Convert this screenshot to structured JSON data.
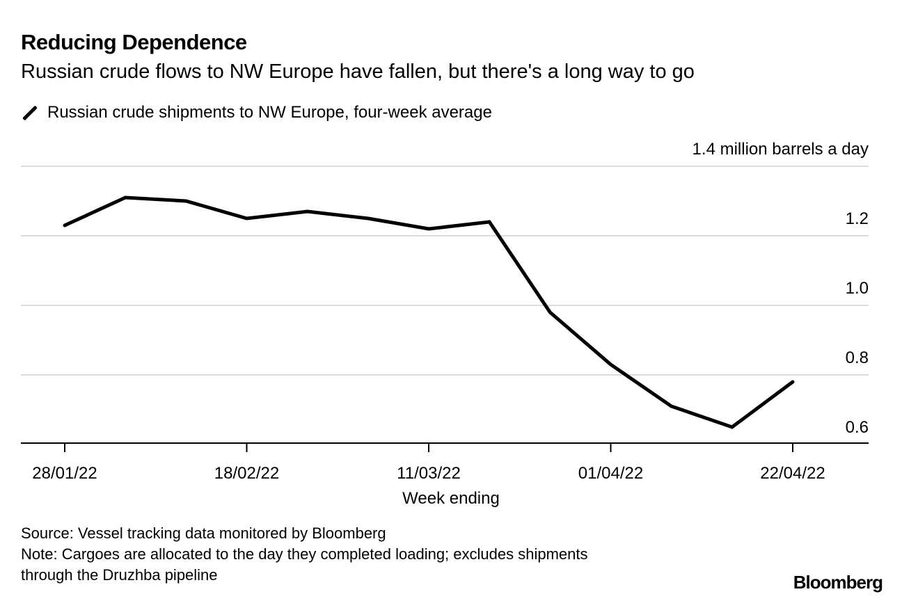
{
  "title": "Reducing Dependence",
  "subtitle": "Russian crude flows to NW Europe have fallen, but there's a long way to go",
  "source": "Source: Vessel tracking data monitored by Bloomberg",
  "note_line1": "Note: Cargoes are allocated to the day they completed loading; excludes shipments",
  "note_line2": "through the Druzhba pipeline",
  "logo": "Bloomberg",
  "chart_data": {
    "type": "line",
    "title": "Reducing Dependence",
    "xlabel": "Week ending",
    "ylabel": "million barrels a day",
    "ylim": [
      0.6,
      1.4
    ],
    "yticks": [
      0.6,
      0.8,
      1.0,
      1.2,
      1.4
    ],
    "ytick_labels": [
      "0.6",
      "0.8",
      "1.0",
      "1.2",
      "1.4 million barrels a day"
    ],
    "grid": true,
    "legend_position": "top-left",
    "x": [
      "28/01/22",
      "04/02/22",
      "11/02/22",
      "18/02/22",
      "25/02/22",
      "04/03/22",
      "11/03/22",
      "18/03/22",
      "25/03/22",
      "01/04/22",
      "08/04/22",
      "15/04/22",
      "22/04/22"
    ],
    "xtick_labels": [
      "28/01/22",
      "18/02/22",
      "11/03/22",
      "01/04/22",
      "22/04/22"
    ],
    "series": [
      {
        "name": "Russian crude shipments to NW Europe, four-week average",
        "color": "#000000",
        "values": [
          1.23,
          1.31,
          1.3,
          1.25,
          1.27,
          1.25,
          1.22,
          1.24,
          0.98,
          0.83,
          0.71,
          0.65,
          0.78
        ]
      }
    ]
  }
}
